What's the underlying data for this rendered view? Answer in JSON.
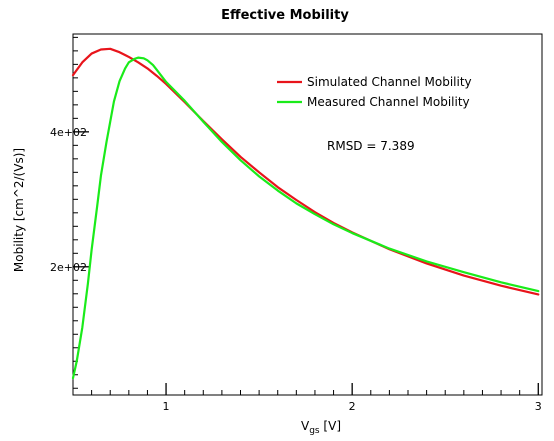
{
  "chart_data": {
    "type": "line",
    "title": "Effective Mobility",
    "xlabel_main": "V",
    "xlabel_sub": "gs",
    "xlabel_unit": " [V]",
    "ylabel": "Mobility [cm^2/(Vs)]",
    "xlim": [
      0.5,
      3.02
    ],
    "ylim": [
      10,
      545
    ],
    "x_ticks": [
      1,
      2,
      3
    ],
    "x_tick_labels": [
      "1",
      "2",
      "3"
    ],
    "x_minor_step": 0.1,
    "y_ticks": [
      200,
      400
    ],
    "y_tick_labels": [
      "2e+02",
      "4e+02"
    ],
    "y_minor_step": 20,
    "grid": false,
    "legend_position": "upper-right",
    "annotation": "RMSD = 7.389",
    "colors": {
      "simulated": "#e8141b",
      "measured": "#1aeb1a"
    },
    "series": [
      {
        "name": "Simulated Channel Mobility",
        "color": "#e8141b",
        "x": [
          0.5,
          0.55,
          0.6,
          0.65,
          0.7,
          0.75,
          0.8,
          0.85,
          0.9,
          0.95,
          1.0,
          1.1,
          1.2,
          1.3,
          1.4,
          1.5,
          1.6,
          1.7,
          1.8,
          1.9,
          2.0,
          2.2,
          2.4,
          2.6,
          2.8,
          3.0
        ],
        "y": [
          484,
          503,
          516,
          522,
          523,
          518,
          511,
          503,
          494,
          483,
          471,
          444,
          416,
          389,
          363,
          340,
          318,
          299,
          281,
          265,
          251,
          226,
          205,
          187,
          172,
          159
        ]
      },
      {
        "name": "Measured Channel Mobility",
        "color": "#1aeb1a",
        "x": [
          0.5,
          0.52,
          0.55,
          0.58,
          0.6,
          0.63,
          0.65,
          0.68,
          0.7,
          0.72,
          0.75,
          0.78,
          0.8,
          0.83,
          0.85,
          0.88,
          0.9,
          0.93,
          0.95,
          1.0,
          1.1,
          1.2,
          1.3,
          1.4,
          1.5,
          1.6,
          1.7,
          1.8,
          1.9,
          2.0,
          2.2,
          2.4,
          2.6,
          2.8,
          3.0
        ],
        "y": [
          35,
          60,
          110,
          175,
          225,
          290,
          335,
          385,
          415,
          445,
          475,
          494,
          503,
          508,
          510,
          509,
          506,
          499,
          492,
          474,
          446,
          415,
          385,
          358,
          334,
          313,
          294,
          278,
          263,
          250,
          227,
          208,
          192,
          177,
          164
        ]
      }
    ]
  }
}
